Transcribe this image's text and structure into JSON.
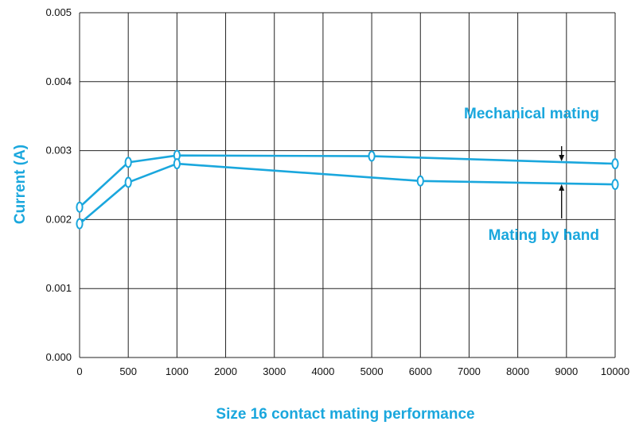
{
  "chart_data": {
    "type": "line",
    "title": "Size 16 contact mating performance",
    "xlabel": "",
    "ylabel": "Current (A)",
    "x_ticks": [
      0,
      500,
      1000,
      2000,
      3000,
      4000,
      5000,
      6000,
      7000,
      8000,
      9000,
      10000
    ],
    "x_tick_labels": [
      "0",
      "500",
      "1000",
      "2000",
      "3000",
      "4000",
      "5000",
      "6000",
      "7000",
      "8000",
      "9000",
      "10000"
    ],
    "y_ticks": [
      0.0,
      0.001,
      0.002,
      0.003,
      0.004,
      0.005
    ],
    "y_tick_labels": [
      "0.000",
      "0.001",
      "0.002",
      "0.003",
      "0.004",
      "0.005"
    ],
    "ylim": [
      0,
      0.005
    ],
    "grid": true,
    "series": [
      {
        "name": "Mechanical mating",
        "x": [
          0,
          500,
          1000,
          5000,
          10000
        ],
        "y": [
          0.00218,
          0.00283,
          0.00293,
          0.00292,
          0.00281
        ]
      },
      {
        "name": "Mating by hand",
        "x": [
          0,
          500,
          1000,
          6000,
          10000
        ],
        "y": [
          0.00194,
          0.00254,
          0.00281,
          0.00256,
          0.00251
        ]
      }
    ],
    "annotations": [
      {
        "text": "Mechanical mating",
        "series": 0
      },
      {
        "text": "Mating by hand",
        "series": 1
      }
    ],
    "colors": {
      "accent": "#1aa7dd",
      "grid": "#222222",
      "text": "#111111"
    }
  }
}
